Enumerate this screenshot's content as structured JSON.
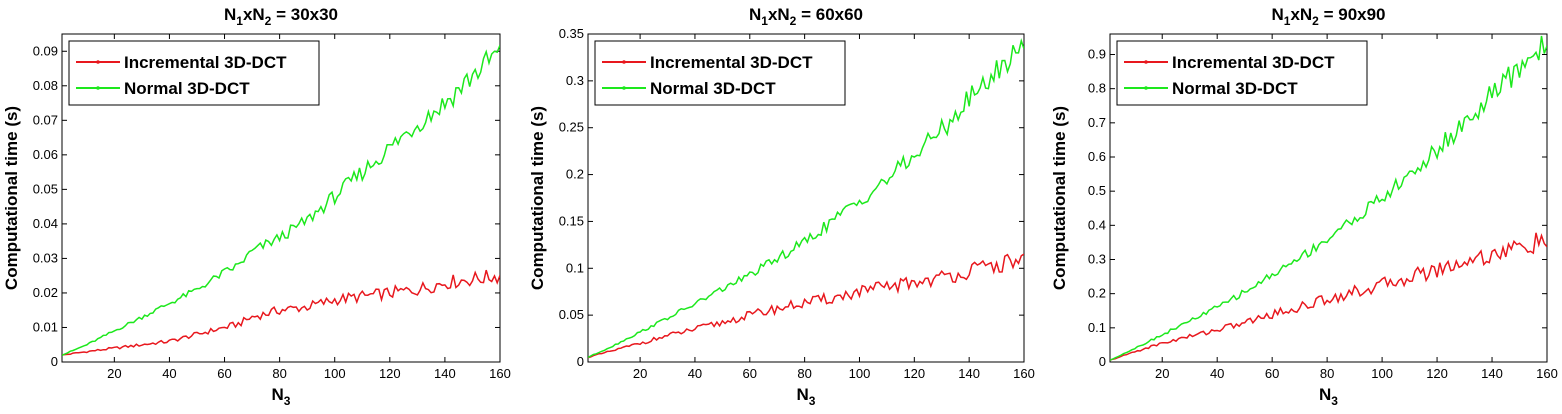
{
  "chart_data": [
    {
      "type": "line",
      "title": {
        "base": "N",
        "sub1": "1",
        "mid": "xN",
        "sub2": "2",
        "rest": " = 30x30"
      },
      "xlabel": {
        "base": "N",
        "sub": "3"
      },
      "ylabel": "Computational time (s)",
      "xlim": [
        1,
        160
      ],
      "ylim": [
        0,
        0.095
      ],
      "xticks": [
        20,
        40,
        60,
        80,
        100,
        120,
        140,
        160
      ],
      "xtick_labels": [
        "20",
        "40",
        "60",
        "80",
        "100",
        "120",
        "140",
        "160"
      ],
      "yticks": [
        0,
        0.01,
        0.02,
        0.03,
        0.04,
        0.05,
        0.06,
        0.07,
        0.08,
        0.09
      ],
      "ytick_labels": [
        "0",
        "0.01",
        "0.02",
        "0.03",
        "0.04",
        "0.05",
        "0.06",
        "0.07",
        "0.08",
        "0.09"
      ],
      "legend_position": "top-left",
      "series": [
        {
          "name": "Incremental 3D-DCT",
          "color": "#e8181e",
          "x": [
            1,
            10,
            20,
            30,
            40,
            50,
            60,
            65,
            70,
            80,
            90,
            100,
            110,
            120,
            130,
            140,
            150,
            160
          ],
          "values": [
            0.002,
            0.003,
            0.004,
            0.005,
            0.006,
            0.008,
            0.01,
            0.011,
            0.013,
            0.015,
            0.016,
            0.018,
            0.019,
            0.02,
            0.021,
            0.023,
            0.024,
            0.025
          ]
        },
        {
          "name": "Normal 3D-DCT",
          "color": "#1de81d",
          "x": [
            1,
            10,
            20,
            30,
            40,
            50,
            60,
            65,
            70,
            80,
            90,
            100,
            110,
            120,
            130,
            140,
            150,
            160
          ],
          "values": [
            0.002,
            0.005,
            0.009,
            0.013,
            0.017,
            0.021,
            0.026,
            0.028,
            0.032,
            0.036,
            0.041,
            0.048,
            0.055,
            0.062,
            0.069,
            0.075,
            0.083,
            0.09
          ]
        }
      ]
    },
    {
      "type": "line",
      "title": {
        "base": "N",
        "sub1": "1",
        "mid": "xN",
        "sub2": "2",
        "rest": " = 60x60"
      },
      "xlabel": {
        "base": "N",
        "sub": "3"
      },
      "ylabel": "Computational time (s)",
      "xlim": [
        1,
        160
      ],
      "ylim": [
        0,
        0.35
      ],
      "xticks": [
        20,
        40,
        60,
        80,
        100,
        120,
        140,
        160
      ],
      "xtick_labels": [
        "20",
        "40",
        "60",
        "80",
        "100",
        "120",
        "140",
        "160"
      ],
      "yticks": [
        0,
        0.05,
        0.1,
        0.15,
        0.2,
        0.25,
        0.3,
        0.35
      ],
      "ytick_labels": [
        "0",
        "0.05",
        "0.1",
        "0.15",
        "0.2",
        "0.25",
        "0.3",
        "0.35"
      ],
      "legend_position": "top-left",
      "series": [
        {
          "name": "Incremental 3D-DCT",
          "color": "#e8181e",
          "x": [
            1,
            10,
            20,
            30,
            40,
            50,
            60,
            70,
            80,
            90,
            100,
            110,
            120,
            130,
            140,
            150,
            160
          ],
          "values": [
            0.005,
            0.012,
            0.02,
            0.028,
            0.035,
            0.042,
            0.05,
            0.057,
            0.063,
            0.068,
            0.075,
            0.08,
            0.085,
            0.09,
            0.097,
            0.103,
            0.11
          ]
        },
        {
          "name": "Normal 3D-DCT",
          "color": "#1de81d",
          "x": [
            1,
            10,
            20,
            30,
            40,
            50,
            60,
            70,
            80,
            90,
            100,
            110,
            120,
            130,
            140,
            150,
            160
          ],
          "values": [
            0.005,
            0.017,
            0.032,
            0.047,
            0.062,
            0.078,
            0.093,
            0.11,
            0.128,
            0.15,
            0.172,
            0.195,
            0.22,
            0.248,
            0.28,
            0.31,
            0.34
          ]
        }
      ]
    },
    {
      "type": "line",
      "title": {
        "base": "N",
        "sub1": "1",
        "mid": "xN",
        "sub2": "2",
        "rest": " = 90x90"
      },
      "xlabel": {
        "base": "N",
        "sub": "3"
      },
      "ylabel": "Computational time (s)",
      "xlim": [
        1,
        160
      ],
      "ylim": [
        0,
        0.96
      ],
      "xticks": [
        20,
        40,
        60,
        80,
        100,
        120,
        140,
        160
      ],
      "xtick_labels": [
        "20",
        "40",
        "60",
        "80",
        "100",
        "120",
        "140",
        "160"
      ],
      "yticks": [
        0,
        0.1,
        0.2,
        0.3,
        0.4,
        0.5,
        0.6,
        0.7,
        0.8,
        0.9
      ],
      "ytick_labels": [
        "0",
        "0.1",
        "0.2",
        "0.3",
        "0.4",
        "0.5",
        "0.6",
        "0.7",
        "0.8",
        "0.9"
      ],
      "legend_position": "top-left",
      "series": [
        {
          "name": "Incremental 3D-DCT",
          "color": "#e8181e",
          "x": [
            1,
            10,
            20,
            30,
            40,
            50,
            60,
            70,
            80,
            90,
            100,
            110,
            120,
            130,
            140,
            150,
            160
          ],
          "values": [
            0.005,
            0.03,
            0.055,
            0.075,
            0.095,
            0.115,
            0.14,
            0.16,
            0.185,
            0.205,
            0.225,
            0.25,
            0.27,
            0.295,
            0.315,
            0.335,
            0.355
          ]
        },
        {
          "name": "Normal 3D-DCT",
          "color": "#1de81d",
          "x": [
            1,
            10,
            20,
            30,
            40,
            50,
            60,
            70,
            80,
            90,
            100,
            110,
            120,
            130,
            140,
            150,
            160
          ],
          "values": [
            0.005,
            0.04,
            0.08,
            0.12,
            0.16,
            0.205,
            0.255,
            0.305,
            0.36,
            0.42,
            0.48,
            0.545,
            0.62,
            0.7,
            0.78,
            0.86,
            0.94
          ]
        }
      ]
    }
  ]
}
